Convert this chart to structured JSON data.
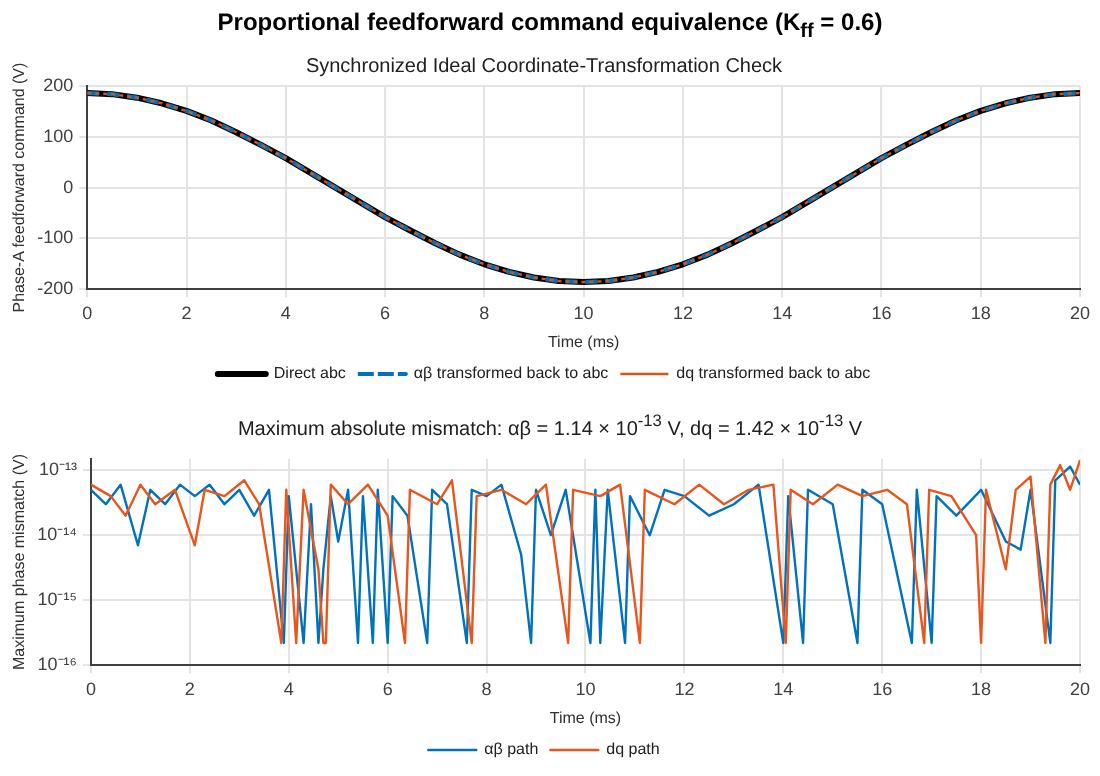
{
  "chart_data": [
    {
      "type": "line",
      "title": "Proportional feedforward command equivalence (K$_{ff}$ = 0.6)",
      "subtitle": "Synchronized Ideal Coordinate-Transformation Check",
      "xlabel": "Time (ms)",
      "ylabel": "Phase-A feedforward command (V)",
      "x": [
        0,
        0.5,
        1,
        1.5,
        2,
        2.5,
        3,
        3.5,
        4,
        4.5,
        5,
        5.5,
        6,
        6.5,
        7,
        7.5,
        8,
        8.5,
        9,
        9.5,
        10,
        10.5,
        11,
        11.5,
        12,
        12.5,
        13,
        13.5,
        14,
        14.5,
        15,
        15.5,
        16,
        16.5,
        17,
        17.5,
        18,
        18.5,
        19,
        19.5,
        20
      ],
      "series": [
        {
          "name": "Direct abc",
          "color": "#000000",
          "line_style": "solid",
          "values": [
            186,
            184,
            177,
            166,
            151,
            132,
            109,
            84,
            58,
            29,
            0,
            -29,
            -58,
            -84,
            -109,
            -132,
            -151,
            -166,
            -177,
            -184,
            -186,
            -184,
            -177,
            -166,
            -151,
            -132,
            -109,
            -84,
            -58,
            -29,
            0,
            29,
            58,
            84,
            109,
            132,
            151,
            166,
            177,
            184,
            186
          ]
        },
        {
          "name": "αβ transformed back to abc",
          "color": "#0072bd",
          "line_style": "dashed",
          "values": [
            186,
            184,
            177,
            166,
            151,
            132,
            109,
            84,
            58,
            29,
            0,
            -29,
            -58,
            -84,
            -109,
            -132,
            -151,
            -166,
            -177,
            -184,
            -186,
            -184,
            -177,
            -166,
            -151,
            -132,
            -109,
            -84,
            -58,
            -29,
            0,
            29,
            58,
            84,
            109,
            132,
            151,
            166,
            177,
            184,
            186
          ]
        },
        {
          "name": "dq transformed back to abc",
          "color": "#d95319",
          "line_style": "dotted",
          "values": [
            186,
            184,
            177,
            166,
            151,
            132,
            109,
            84,
            58,
            29,
            0,
            -29,
            -58,
            -84,
            -109,
            -132,
            -151,
            -166,
            -177,
            -184,
            -186,
            -184,
            -177,
            -166,
            -151,
            -132,
            -109,
            -84,
            -58,
            -29,
            0,
            29,
            58,
            84,
            109,
            132,
            151,
            166,
            177,
            184,
            186
          ]
        }
      ],
      "xlim": [
        0,
        20
      ],
      "xticks": [
        0,
        2,
        4,
        6,
        8,
        10,
        12,
        14,
        16,
        18,
        20
      ],
      "ylim": [
        -200,
        200
      ],
      "yticks": [
        -200,
        -100,
        0,
        100,
        200
      ],
      "grid": true,
      "legend": "bottom",
      "marker": "none"
    },
    {
      "type": "line",
      "title": "Maximum absolute mismatch: αβ = 1.14 × 10$^{-13}$ V, dq = 1.42 × 10$^{-13}$ V",
      "xlabel": "Time (ms)",
      "ylabel": "Maximum phase mismatch (V)",
      "series": [
        {
          "name": "αβ path",
          "color": "#0072bd",
          "line_style": "solid",
          "x": [
            0,
            0.3,
            0.6,
            0.95,
            1.2,
            1.5,
            1.8,
            2.1,
            2.4,
            2.7,
            3.0,
            3.3,
            3.6,
            3.9,
            4.0,
            4.3,
            4.45,
            4.6,
            4.7,
            4.85,
            5.0,
            5.2,
            5.4,
            5.5,
            5.7,
            5.8,
            6.0,
            6.1,
            6.4,
            6.8,
            6.9,
            7.2,
            7.6,
            7.7,
            8.0,
            8.3,
            8.7,
            8.9,
            9.0,
            9.3,
            9.6,
            10.1,
            10.2,
            10.3,
            10.45,
            10.8,
            10.9,
            11.3,
            11.6,
            12.0,
            12.5,
            13.0,
            13.5,
            14.0,
            14.1,
            14.4,
            14.5,
            15.0,
            15.5,
            15.6,
            16.0,
            16.6,
            16.7,
            17.0,
            17.1,
            17.5,
            18.0,
            18.5,
            18.8,
            19.0,
            19.4,
            19.5,
            19.8,
            20
          ],
          "values": [
            5e-14,
            3e-14,
            6e-14,
            7e-15,
            5e-14,
            3e-14,
            6e-14,
            4e-14,
            6e-14,
            3e-14,
            5e-14,
            2e-14,
            5e-14,
            2.2e-16,
            4e-14,
            2.2e-16,
            3e-14,
            2.2e-16,
            3e-15,
            4e-14,
            8e-15,
            5e-14,
            2.2e-16,
            4e-14,
            2.2e-16,
            5e-14,
            2.2e-16,
            4e-14,
            2e-14,
            2.2e-16,
            5e-14,
            3e-14,
            2.2e-16,
            5e-14,
            4e-14,
            6e-14,
            5e-15,
            2.2e-16,
            5e-14,
            1e-14,
            5e-14,
            2.2e-16,
            5e-14,
            2.2e-16,
            5e-14,
            2.2e-16,
            4e-14,
            1e-14,
            5e-14,
            4e-14,
            2e-14,
            3e-14,
            6e-14,
            2.2e-16,
            4e-14,
            2.2e-16,
            5e-14,
            3e-14,
            2.2e-16,
            5e-14,
            3e-14,
            2.2e-16,
            5e-14,
            2.2e-16,
            4e-14,
            2e-14,
            5e-14,
            8e-15,
            6e-15,
            5e-14,
            2.2e-16,
            7e-14,
            1.14e-13,
            6e-14
          ]
        },
        {
          "name": "dq path",
          "color": "#e8561c",
          "line_style": "solid",
          "x": [
            0,
            0.4,
            0.7,
            1.0,
            1.3,
            1.7,
            2.1,
            2.3,
            2.7,
            3.1,
            3.4,
            3.85,
            3.95,
            4.15,
            4.3,
            4.6,
            4.7,
            4.75,
            4.85,
            5.2,
            5.6,
            6.0,
            6.35,
            6.45,
            7.0,
            7.3,
            7.7,
            7.8,
            8.3,
            8.8,
            9.2,
            9.65,
            9.75,
            10.3,
            10.7,
            11.1,
            11.2,
            11.8,
            12.3,
            12.8,
            13.3,
            13.8,
            14.05,
            14.15,
            14.6,
            15.1,
            15.6,
            16.1,
            16.5,
            16.85,
            16.95,
            17.4,
            17.9,
            18.0,
            18.1,
            18.5,
            18.7,
            19.0,
            19.3,
            19.4,
            19.6,
            19.8,
            20
          ],
          "values": [
            6e-14,
            4e-14,
            2e-14,
            6e-14,
            3e-14,
            5e-14,
            7e-15,
            5e-14,
            4e-14,
            7e-14,
            3e-14,
            2.2e-16,
            5e-14,
            2.2e-16,
            5e-14,
            3e-15,
            2.2e-16,
            2.2e-16,
            6e-14,
            3e-14,
            6e-14,
            2e-14,
            2.2e-16,
            5e-14,
            3e-14,
            7e-14,
            2.2e-16,
            4e-14,
            5e-14,
            3e-14,
            6e-14,
            2.2e-16,
            5e-14,
            4e-14,
            6e-14,
            2.2e-16,
            5e-14,
            3e-14,
            6e-14,
            3e-14,
            5e-14,
            6e-14,
            2.2e-16,
            5e-14,
            3e-14,
            6e-14,
            4e-14,
            5e-14,
            3e-14,
            2.2e-16,
            5e-14,
            4e-14,
            1e-14,
            2.2e-16,
            5e-14,
            3e-15,
            5e-14,
            8e-14,
            2.2e-16,
            6e-14,
            1.2e-13,
            5e-14,
            1.42e-13
          ]
        }
      ],
      "xlim": [
        0,
        20
      ],
      "xticks": [
        0,
        2,
        4,
        6,
        8,
        10,
        12,
        14,
        16,
        18,
        20
      ],
      "log": "y",
      "ylim": [
        1e-16,
        1.5e-13
      ],
      "yticks": [
        {
          "value": 1e-16,
          "label": "10⁻¹⁶"
        },
        {
          "value": 1e-15,
          "label": "10⁻¹⁵"
        },
        {
          "value": 1e-14,
          "label": "10⁻¹⁴"
        },
        {
          "value": 1e-13,
          "label": "10⁻¹³"
        }
      ],
      "grid": true,
      "legend": "bottom",
      "marker": "none"
    }
  ]
}
